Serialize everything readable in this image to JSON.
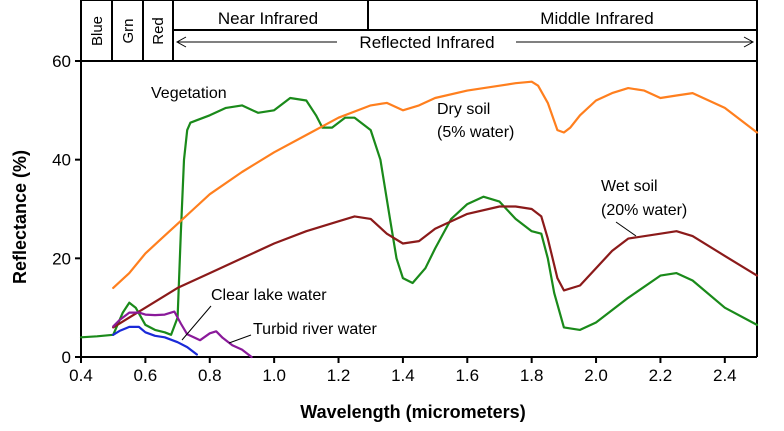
{
  "chart_data": {
    "type": "line",
    "xlabel": "Wavelength (micrometers)",
    "ylabel": "Reflectance (%)",
    "xlim": [
      0.4,
      2.5
    ],
    "ylim": [
      0,
      60
    ],
    "x_ticks": [
      "0.4",
      "0.6",
      "0.8",
      "1.0",
      "1.2",
      "1.4",
      "1.6",
      "1.8",
      "2.0",
      "2.2",
      "2.4"
    ],
    "y_ticks": [
      "0",
      "20",
      "40",
      "60"
    ],
    "grid": false,
    "bands": [
      {
        "label": "Blue",
        "x0": 0.4,
        "x1": 0.5
      },
      {
        "label": "Grn",
        "x0": 0.5,
        "x1": 0.6
      },
      {
        "label": "Red",
        "x0": 0.6,
        "x1": 0.7
      }
    ],
    "regions": {
      "near_infrared": "Near Infrared",
      "middle_infrared": "Middle Infrared",
      "reflected_infrared": "Reflected Infrared"
    },
    "series": [
      {
        "name": "Vegetation",
        "color": "#1a8a1a",
        "x": [
          0.4,
          0.45,
          0.5,
          0.53,
          0.55,
          0.57,
          0.6,
          0.63,
          0.66,
          0.68,
          0.7,
          0.71,
          0.72,
          0.73,
          0.74,
          0.76,
          0.8,
          0.85,
          0.9,
          0.95,
          1.0,
          1.05,
          1.1,
          1.13,
          1.15,
          1.18,
          1.22,
          1.25,
          1.3,
          1.33,
          1.36,
          1.38,
          1.4,
          1.43,
          1.47,
          1.5,
          1.55,
          1.6,
          1.65,
          1.7,
          1.75,
          1.8,
          1.83,
          1.85,
          1.87,
          1.9,
          1.95,
          2.0,
          2.1,
          2.2,
          2.25,
          2.3,
          2.4,
          2.5
        ],
        "y": [
          4,
          4.2,
          4.5,
          9,
          11,
          10,
          6.5,
          5.5,
          5,
          4.5,
          8,
          25,
          40,
          46,
          47.5,
          48,
          49,
          50.5,
          51,
          49.5,
          50,
          52.5,
          52,
          49,
          46.5,
          46.5,
          48.5,
          48.5,
          46,
          40,
          28,
          20,
          16,
          15,
          18,
          22,
          28,
          31,
          32.5,
          31.5,
          28,
          25.5,
          25,
          20,
          13,
          6,
          5.5,
          7,
          12,
          16.5,
          17,
          15.5,
          10,
          6.5
        ]
      },
      {
        "name": "Dry soil (5% water)",
        "color": "#ff7f1e",
        "x": [
          0.5,
          0.55,
          0.6,
          0.65,
          0.7,
          0.75,
          0.8,
          0.9,
          1.0,
          1.1,
          1.2,
          1.3,
          1.35,
          1.4,
          1.45,
          1.5,
          1.6,
          1.7,
          1.75,
          1.8,
          1.82,
          1.85,
          1.88,
          1.9,
          1.92,
          1.95,
          2.0,
          2.05,
          2.1,
          2.15,
          2.2,
          2.25,
          2.3,
          2.4,
          2.5
        ],
        "y": [
          14,
          17,
          21,
          24,
          27,
          30,
          33,
          37.5,
          41.5,
          45,
          48.5,
          51,
          51.5,
          50,
          51,
          52.5,
          54,
          55,
          55.5,
          55.8,
          55,
          51.5,
          46,
          45.5,
          46.5,
          49,
          52,
          53.5,
          54.5,
          54,
          52.5,
          53,
          53.5,
          50.5,
          45.5
        ]
      },
      {
        "name": "Wet soil (20% water)",
        "color": "#8b1a1a",
        "x": [
          0.5,
          0.6,
          0.7,
          0.8,
          0.9,
          1.0,
          1.1,
          1.2,
          1.25,
          1.3,
          1.35,
          1.4,
          1.45,
          1.5,
          1.6,
          1.7,
          1.75,
          1.8,
          1.83,
          1.85,
          1.88,
          1.9,
          1.95,
          2.0,
          2.05,
          2.1,
          2.2,
          2.25,
          2.3,
          2.4,
          2.5
        ],
        "y": [
          6,
          10,
          14,
          17,
          20,
          23,
          25.5,
          27.5,
          28.5,
          28,
          25,
          23,
          23.5,
          26,
          29,
          30.5,
          30.5,
          30,
          28.5,
          24,
          16,
          13.5,
          14.5,
          18,
          21.5,
          24,
          25,
          25.5,
          24.5,
          20.5,
          16.5
        ]
      },
      {
        "name": "Clear lake water",
        "color": "#1a2ad8",
        "x": [
          0.5,
          0.52,
          0.55,
          0.58,
          0.6,
          0.63,
          0.66,
          0.7,
          0.73,
          0.76
        ],
        "y": [
          4.5,
          5.3,
          6.1,
          6.1,
          5,
          4.3,
          4,
          3,
          2,
          0.5
        ]
      },
      {
        "name": "Turbid river water",
        "color": "#8a1a9a",
        "x": [
          0.5,
          0.52,
          0.55,
          0.58,
          0.6,
          0.63,
          0.66,
          0.69,
          0.71,
          0.73,
          0.75,
          0.77,
          0.8,
          0.82,
          0.84,
          0.87,
          0.9,
          0.93
        ],
        "y": [
          6.2,
          7.5,
          9,
          9,
          8.6,
          8.5,
          8.6,
          9.2,
          6.8,
          4.6,
          4,
          3.4,
          4.8,
          5.2,
          3.9,
          2.4,
          1.5,
          0
        ]
      }
    ],
    "annotations": {
      "vegetation": "Vegetation",
      "dry_soil_1": "Dry soil",
      "dry_soil_2": "(5% water)",
      "wet_soil_1": "Wet soil",
      "wet_soil_2": "(20% water)",
      "clear_lake": "Clear lake water",
      "turbid_river": "Turbid river water"
    }
  }
}
